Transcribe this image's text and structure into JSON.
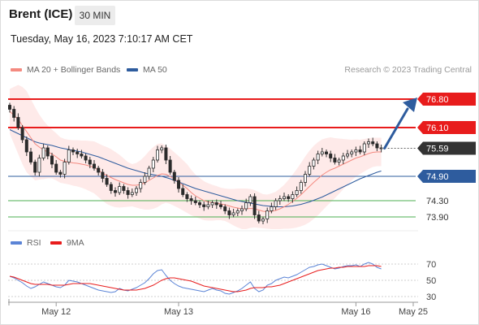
{
  "header": {
    "instrument": "Brent (ICE)",
    "timeframe": "30 MIN",
    "datetime": "Tuesday, May 16, 2023 7:10:17 AM CET"
  },
  "legend": {
    "ma20": {
      "label": "MA 20 + Bollinger Bands",
      "color": "#f48a80"
    },
    "ma50": {
      "label": "MA 50",
      "color": "#2e5c9e"
    },
    "credit": "Research © 2023 Trading Central"
  },
  "chart_data": {
    "type": "candlestick",
    "price_range": [
      73.6,
      77.0
    ],
    "levels": [
      {
        "value": 76.8,
        "label": "76.80",
        "kind": "resistance",
        "color": "#e81c1c",
        "tag_fill": "#e81c1c",
        "tag_text": "#ffffff"
      },
      {
        "value": 76.1,
        "label": "76.10",
        "kind": "resistance",
        "color": "#e81c1c",
        "tag_fill": "#e81c1c",
        "tag_text": "#ffffff"
      },
      {
        "value": 75.59,
        "label": "75.59",
        "kind": "last",
        "color": "#333333",
        "tag_fill": "#333333",
        "tag_text": "#ffffff"
      },
      {
        "value": 74.9,
        "label": "74.90",
        "kind": "pivot",
        "color": "#2e5c9e",
        "tag_fill": "#2e5c9e",
        "tag_text": "#ffffff"
      },
      {
        "value": 74.3,
        "label": "74.30",
        "kind": "support",
        "color": "#4caf50",
        "tag_fill": "none",
        "tag_text": "#333333"
      },
      {
        "value": 73.9,
        "label": "73.90",
        "kind": "support",
        "color": "#4caf50",
        "tag_fill": "none",
        "tag_text": "#333333"
      }
    ],
    "close": [
      76.55,
      76.35,
      76.1,
      75.8,
      75.5,
      75.25,
      75.0,
      75.35,
      75.6,
      75.4,
      75.2,
      75.0,
      74.95,
      75.25,
      75.55,
      75.5,
      75.45,
      75.4,
      75.3,
      75.2,
      75.1,
      75.0,
      74.85,
      74.7,
      74.55,
      74.5,
      74.65,
      74.55,
      74.45,
      74.5,
      74.6,
      74.75,
      74.9,
      75.1,
      75.3,
      75.55,
      75.6,
      75.3,
      75.0,
      74.8,
      74.6,
      74.45,
      74.35,
      74.3,
      74.25,
      74.2,
      74.15,
      74.2,
      74.25,
      74.2,
      74.15,
      74.05,
      73.95,
      74.0,
      74.05,
      74.1,
      74.25,
      74.4,
      73.95,
      73.8,
      73.85,
      74.05,
      74.15,
      74.3,
      74.35,
      74.4,
      74.35,
      74.45,
      74.55,
      74.75,
      74.95,
      75.15,
      75.3,
      75.45,
      75.5,
      75.45,
      75.35,
      75.25,
      75.3,
      75.4,
      75.45,
      75.5,
      75.55,
      75.5,
      75.7,
      75.75,
      75.7,
      75.6,
      75.59
    ],
    "ma20": [
      76.5,
      76.4,
      76.3,
      76.15,
      76.0,
      75.85,
      75.7,
      75.62,
      75.55,
      75.5,
      75.45,
      75.38,
      75.3,
      75.27,
      75.25,
      75.23,
      75.22,
      75.2,
      75.18,
      75.15,
      75.12,
      75.05,
      74.98,
      74.92,
      74.87,
      74.82,
      74.78,
      74.74,
      74.7,
      74.68,
      74.68,
      74.7,
      74.74,
      74.8,
      74.86,
      74.92,
      74.96,
      74.95,
      74.9,
      74.83,
      74.76,
      74.68,
      74.6,
      74.5,
      74.42,
      74.36,
      74.3,
      74.27,
      74.25,
      74.24,
      74.22,
      74.2,
      74.17,
      74.14,
      74.12,
      74.1,
      74.1,
      74.11,
      74.1,
      74.07,
      74.04,
      74.03,
      74.04,
      74.06,
      74.1,
      74.15,
      74.21,
      74.28,
      74.36,
      74.45,
      74.55,
      74.65,
      74.75,
      74.84,
      74.93,
      75.0,
      75.06,
      75.1,
      75.15,
      75.2,
      75.25,
      75.3,
      75.35,
      75.38,
      75.42,
      75.46,
      75.49,
      75.5,
      75.5
    ],
    "ma50": [
      76.05,
      76.0,
      75.95,
      75.9,
      75.85,
      75.8,
      75.75,
      75.72,
      75.7,
      75.68,
      75.66,
      75.63,
      75.6,
      75.58,
      75.56,
      75.54,
      75.52,
      75.5,
      75.47,
      75.44,
      75.41,
      75.38,
      75.34,
      75.3,
      75.26,
      75.22,
      75.18,
      75.14,
      75.1,
      75.07,
      75.04,
      75.01,
      74.98,
      74.96,
      74.94,
      74.92,
      74.9,
      74.87,
      74.84,
      74.8,
      74.76,
      74.72,
      74.68,
      74.64,
      74.6,
      74.57,
      74.54,
      74.51,
      74.48,
      74.45,
      74.42,
      74.39,
      74.36,
      74.33,
      74.3,
      74.28,
      74.26,
      74.24,
      74.22,
      74.2,
      74.18,
      74.17,
      74.16,
      74.15,
      74.15,
      74.15,
      74.16,
      74.17,
      74.19,
      74.21,
      74.24,
      74.27,
      74.31,
      74.35,
      74.39,
      74.44,
      74.49,
      74.54,
      74.59,
      74.64,
      74.69,
      74.74,
      74.79,
      74.84,
      74.88,
      74.92,
      74.96,
      75.0,
      75.03
    ],
    "band_width": [
      0.55,
      0.7,
      0.85,
      0.95,
      1.0,
      0.95,
      0.9,
      0.8,
      0.72,
      0.65,
      0.6,
      0.58,
      0.56,
      0.55,
      0.55,
      0.56,
      0.57,
      0.58,
      0.6,
      0.62,
      0.64,
      0.66,
      0.68,
      0.7,
      0.7,
      0.68,
      0.65,
      0.6,
      0.55,
      0.52,
      0.55,
      0.6,
      0.66,
      0.72,
      0.76,
      0.78,
      0.75,
      0.7,
      0.68,
      0.66,
      0.64,
      0.62,
      0.6,
      0.56,
      0.52,
      0.5,
      0.48,
      0.46,
      0.44,
      0.42,
      0.4,
      0.4,
      0.42,
      0.45,
      0.48,
      0.5,
      0.5,
      0.48,
      0.46,
      0.44,
      0.42,
      0.42,
      0.44,
      0.46,
      0.5,
      0.54,
      0.6,
      0.66,
      0.72,
      0.78,
      0.84,
      0.88,
      0.9,
      0.9,
      0.88,
      0.84,
      0.8,
      0.74,
      0.68,
      0.62,
      0.56,
      0.5,
      0.46,
      0.42,
      0.4,
      0.38,
      0.36,
      0.35,
      0.35
    ],
    "forecast": {
      "from": 75.59,
      "to": 76.8
    },
    "rsi": {
      "label": "RSI",
      "color": "#5b84d6",
      "ticks": [
        70,
        50,
        30
      ],
      "ma_label": "9MA",
      "ma_color": "#e81c1c",
      "values": [
        55,
        53,
        50,
        47,
        43,
        40,
        42,
        45,
        48,
        46,
        44,
        42,
        41,
        44,
        50,
        49,
        48,
        46,
        44,
        42,
        40,
        38,
        37,
        36,
        35,
        36,
        40,
        38,
        37,
        39,
        41,
        44,
        47,
        52,
        58,
        62,
        63,
        56,
        50,
        46,
        43,
        41,
        40,
        39,
        38,
        37,
        36,
        38,
        40,
        38,
        37,
        34,
        33,
        35,
        37,
        40,
        44,
        48,
        40,
        36,
        38,
        44,
        46,
        50,
        52,
        54,
        53,
        55,
        57,
        60,
        63,
        66,
        67,
        69,
        70,
        68,
        66,
        64,
        65,
        67,
        68,
        68,
        69,
        67,
        70,
        72,
        70,
        66,
        64
      ],
      "ma_values": [
        55,
        54,
        52,
        50,
        48,
        46,
        45,
        45,
        45,
        45,
        44,
        44,
        44,
        44,
        45,
        46,
        46,
        46,
        46,
        46,
        45,
        44,
        43,
        42,
        41,
        40,
        39,
        38,
        38,
        38,
        38,
        39,
        40,
        42,
        44,
        47,
        50,
        52,
        53,
        53,
        52,
        51,
        50,
        49,
        47,
        45,
        43,
        42,
        41,
        40,
        39,
        38,
        37,
        36,
        36,
        37,
        38,
        40,
        41,
        41,
        41,
        42,
        42,
        43,
        44,
        46,
        48,
        50,
        52,
        54,
        56,
        58,
        60,
        62,
        63,
        64,
        65,
        65,
        66,
        66,
        67,
        67,
        67,
        67,
        67,
        68,
        68,
        68,
        67
      ]
    },
    "x_axis": {
      "labels": [
        {
          "text": "May 12",
          "index": 11
        },
        {
          "text": "May 13",
          "index": 40
        },
        {
          "text": "May 16",
          "index": 82
        },
        {
          "text": "May 25",
          "index": 89
        }
      ]
    }
  }
}
